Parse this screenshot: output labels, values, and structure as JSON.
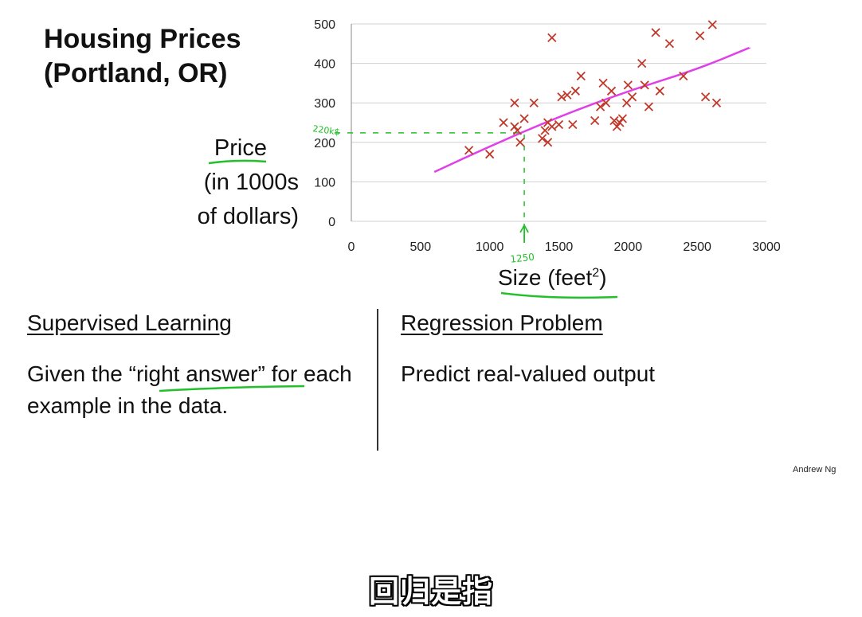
{
  "slide": {
    "title_line1": "Housing Prices",
    "title_line2": "(Portland, OR)",
    "ylabel_line1": "Price",
    "ylabel_line2": "(in 1000s",
    "ylabel_line3": "of dollars)",
    "xlabel": "Size (feet",
    "xlabel_sup": "2",
    "xlabel_close": ")",
    "left_heading": "Supervised Learning",
    "left_body_pre": "Given the “",
    "left_body_em": "right answer",
    "left_body_post": "” for each example in the data.",
    "right_heading": "Regression Problem",
    "right_body": "Predict real-valued output",
    "credit": "Andrew Ng",
    "caption": "回归是指"
  },
  "annotations": {
    "x_marker_label": "1250",
    "y_marker_label": "220k$",
    "marker_x": 1250,
    "marker_y": 220
  },
  "colors": {
    "points": "#c0392b",
    "fit_line": "#e040e8",
    "annotation": "#22c02a",
    "grid": "#d0d0d0"
  },
  "chart_data": {
    "type": "scatter",
    "title": "Housing Prices (Portland, OR)",
    "xlabel": "Size (feet²)",
    "ylabel": "Price (in 1000s of dollars)",
    "xlim": [
      0,
      3000
    ],
    "ylim": [
      0,
      500
    ],
    "xticks": [
      0,
      500,
      1000,
      1500,
      2000,
      2500,
      3000
    ],
    "yticks": [
      0,
      100,
      200,
      300,
      400,
      500
    ],
    "grid": "horizontal",
    "points": [
      [
        850,
        180
      ],
      [
        1000,
        170
      ],
      [
        1100,
        250
      ],
      [
        1180,
        240
      ],
      [
        1180,
        300
      ],
      [
        1200,
        230
      ],
      [
        1220,
        200
      ],
      [
        1250,
        260
      ],
      [
        1320,
        300
      ],
      [
        1380,
        210
      ],
      [
        1400,
        230
      ],
      [
        1420,
        200
      ],
      [
        1420,
        250
      ],
      [
        1450,
        240
      ],
      [
        1450,
        465
      ],
      [
        1500,
        245
      ],
      [
        1520,
        315
      ],
      [
        1560,
        320
      ],
      [
        1600,
        245
      ],
      [
        1620,
        330
      ],
      [
        1660,
        368
      ],
      [
        1760,
        255
      ],
      [
        1800,
        290
      ],
      [
        1820,
        350
      ],
      [
        1840,
        300
      ],
      [
        1880,
        330
      ],
      [
        1900,
        255
      ],
      [
        1920,
        240
      ],
      [
        1940,
        250
      ],
      [
        1960,
        260
      ],
      [
        1990,
        300
      ],
      [
        2000,
        345
      ],
      [
        2030,
        315
      ],
      [
        2100,
        400
      ],
      [
        2120,
        345
      ],
      [
        2150,
        290
      ],
      [
        2200,
        478
      ],
      [
        2230,
        330
      ],
      [
        2300,
        450
      ],
      [
        2400,
        368
      ],
      [
        2520,
        470
      ],
      [
        2560,
        315
      ],
      [
        2610,
        498
      ],
      [
        2640,
        300
      ]
    ],
    "fit_line": [
      [
        600,
        125
      ],
      [
        1000,
        190
      ],
      [
        1500,
        265
      ],
      [
        2000,
        330
      ],
      [
        2500,
        385
      ],
      [
        2880,
        440
      ]
    ]
  }
}
